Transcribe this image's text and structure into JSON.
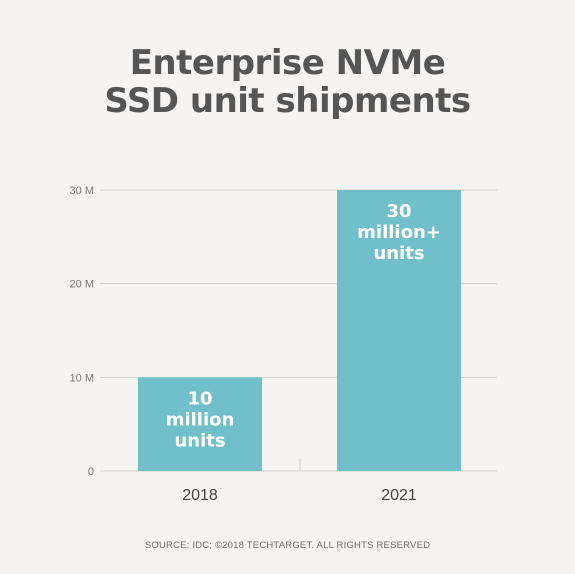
{
  "title_lines": [
    "Enterprise NVMe",
    "SSD unit shipments"
  ],
  "source": "SOURCE: IDC; ©2018 TECHTARGET. ALL RIGHTS RESERVED",
  "colors": {
    "bar": "#72bfcc",
    "title": "#555555",
    "grid": "#cfcfcf",
    "axis_text": "#777777",
    "category_text": "#444444",
    "bar_label": "#ffffff"
  },
  "chart_data": {
    "type": "bar",
    "title": "Enterprise NVMe SSD unit shipments",
    "categories": [
      "2018",
      "2021"
    ],
    "values": [
      10000000,
      30000000
    ],
    "bar_labels": [
      [
        "10",
        "million",
        "units"
      ],
      [
        "30",
        "million+",
        "units"
      ]
    ],
    "y_ticks": [
      {
        "value": 0,
        "label": "0"
      },
      {
        "value": 10000000,
        "label": "10 M"
      },
      {
        "value": 20000000,
        "label": "20 M"
      },
      {
        "value": 30000000,
        "label": "30 M"
      }
    ],
    "ylim": [
      0,
      30000000
    ],
    "xlabel": "",
    "ylabel": "",
    "grid": true
  }
}
